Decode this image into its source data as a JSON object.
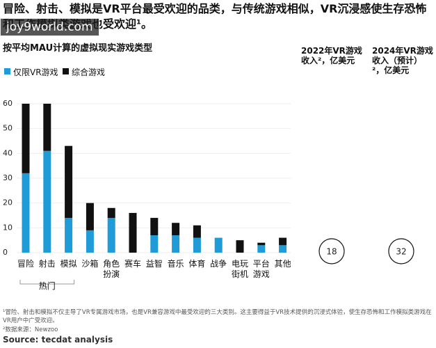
{
  "header": {
    "title": "冒险、射击、模拟是VR平台最受欢迎的品类，与传统游戏相似，VR沉浸感使生存恐怖和工作模拟类游戏也受欢迎¹。",
    "watermark": "joy9world.com"
  },
  "chart_data": {
    "type": "bar",
    "stacked": true,
    "subtitle": "按平均MAU计算的虚拟现实游戏类型",
    "categories": [
      "冒险",
      "射击",
      "模拟",
      "沙箱",
      "角色扮演",
      "赛车",
      "益智",
      "音乐",
      "体育",
      "战争",
      "电玩街机",
      "平台游戏",
      "其他"
    ],
    "series": [
      {
        "name": "仅限VR游戏",
        "color": "#1f9bd7",
        "values": [
          32,
          41,
          14,
          9,
          14,
          0,
          7,
          7,
          6,
          6,
          0,
          3,
          3
        ]
      },
      {
        "name": "综合游戏",
        "color": "#111111",
        "values": [
          28,
          19,
          29,
          11,
          4,
          16,
          7,
          5,
          5,
          0,
          5,
          1,
          3
        ]
      }
    ],
    "ylim": [
      0,
      60
    ],
    "yticks": [
      0,
      10,
      20,
      30,
      40,
      50,
      60
    ],
    "grid": true,
    "group_label": "热门"
  },
  "revenue": [
    {
      "label": "2022年VR游戏收入²，亿美元",
      "value": 18
    },
    {
      "label": "2024年VR游戏收入（预计）²，亿美元",
      "value": 32
    }
  ],
  "footnotes": [
    "¹冒险、射击和模拟不仅主导了VR专属游戏市场，也是VR兼容游戏中最受欢迎的三大类别。这主要得益于VR技术提供的沉浸式体验，使生存恐怖和工作模拟类游戏在VR用户中广受欢迎。",
    "²数据来源：Newzoo"
  ],
  "source": "Source: tecdat analysis"
}
